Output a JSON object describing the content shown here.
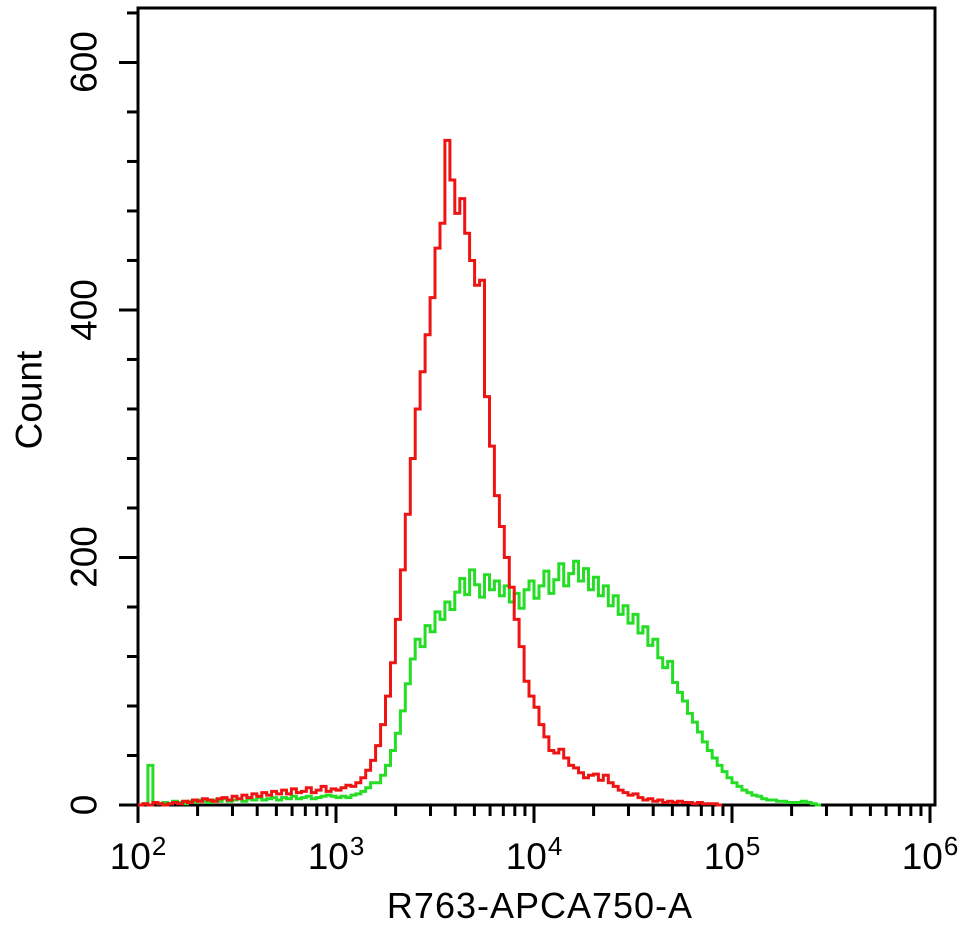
{
  "chart_data": {
    "type": "line",
    "subtype": "flow-cytometry-histogram-overlay",
    "title": "",
    "xlabel": "R763-APCA750-A",
    "ylabel": "Count",
    "grid": false,
    "legend": "none",
    "xaxis": {
      "scale": "log10",
      "min": 100,
      "max": 1000000,
      "minor_ticks": "log-decades-2-to-9",
      "tick_labels": [
        {
          "base": "10",
          "exp": "2",
          "log10": 2
        },
        {
          "base": "10",
          "exp": "3",
          "log10": 3
        },
        {
          "base": "10",
          "exp": "4",
          "log10": 4
        },
        {
          "base": "10",
          "exp": "5",
          "log10": 5
        },
        {
          "base": "10",
          "exp": "6",
          "log10": 6
        }
      ]
    },
    "yaxis": {
      "min": 0,
      "max": 644,
      "minor_tick_step": 40,
      "tick_labels": [
        {
          "text": "600",
          "value": 600
        },
        {
          "text": "400",
          "value": 400
        },
        {
          "text": "200",
          "value": 200
        },
        {
          "text": "0",
          "value": 0
        }
      ]
    },
    "series": [
      {
        "id": "green-histogram",
        "color": "#25dd25",
        "bin_log10_start": 2.0,
        "bin_log10_step": 0.025,
        "counts": [
          0,
          1,
          32,
          2,
          1,
          2,
          1,
          3,
          2,
          1,
          3,
          2,
          4,
          3,
          2,
          4,
          3,
          5,
          3,
          4,
          5,
          3,
          5,
          4,
          6,
          4,
          5,
          6,
          4,
          6,
          5,
          7,
          5,
          6,
          7,
          5,
          6,
          7,
          8,
          7,
          6,
          7,
          6,
          8,
          9,
          11,
          14,
          18,
          18,
          24,
          32,
          44,
          58,
          76,
          98,
          118,
          134,
          128,
          145,
          140,
          156,
          150,
          164,
          158,
          172,
          183,
          170,
          190,
          178,
          168,
          186,
          174,
          181,
          169,
          177,
          164,
          171,
          159,
          174,
          181,
          167,
          177,
          189,
          171,
          182,
          195,
          177,
          187,
          197,
          181,
          191,
          174,
          184,
          169,
          177,
          161,
          169,
          154,
          161,
          147,
          154,
          139,
          144,
          129,
          134,
          119,
          111,
          116,
          99,
          91,
          84,
          74,
          67,
          59,
          51,
          44,
          38,
          32,
          27,
          22,
          18,
          15,
          12,
          10,
          8,
          7,
          5,
          4,
          4,
          3,
          3,
          2,
          2,
          2,
          3,
          2,
          1,
          0
        ]
      },
      {
        "id": "red-histogram",
        "color": "#ee1414",
        "bin_log10_start": 2.0,
        "bin_log10_step": 0.025,
        "counts": [
          0,
          1,
          0,
          2,
          1,
          0,
          1,
          2,
          1,
          3,
          2,
          4,
          3,
          5,
          4,
          3,
          5,
          6,
          4,
          7,
          5,
          8,
          6,
          9,
          7,
          10,
          8,
          11,
          9,
          12,
          9,
          13,
          10,
          11,
          14,
          10,
          12,
          15,
          11,
          13,
          12,
          14,
          16,
          15,
          18,
          22,
          28,
          36,
          48,
          65,
          88,
          115,
          150,
          190,
          235,
          280,
          320,
          350,
          380,
          410,
          450,
          470,
          537,
          505,
          478,
          490,
          462,
          440,
          420,
          424,
          330,
          290,
          250,
          225,
          200,
          176,
          150,
          128,
          100,
          88,
          79,
          65,
          55,
          44,
          42,
          45,
          38,
          32,
          30,
          26,
          22,
          24,
          25,
          20,
          24,
          18,
          15,
          12,
          10,
          8,
          9,
          6,
          4,
          5,
          3,
          4,
          2,
          3,
          2,
          3,
          2,
          2,
          1,
          2,
          1,
          1,
          1,
          0
        ]
      }
    ]
  }
}
